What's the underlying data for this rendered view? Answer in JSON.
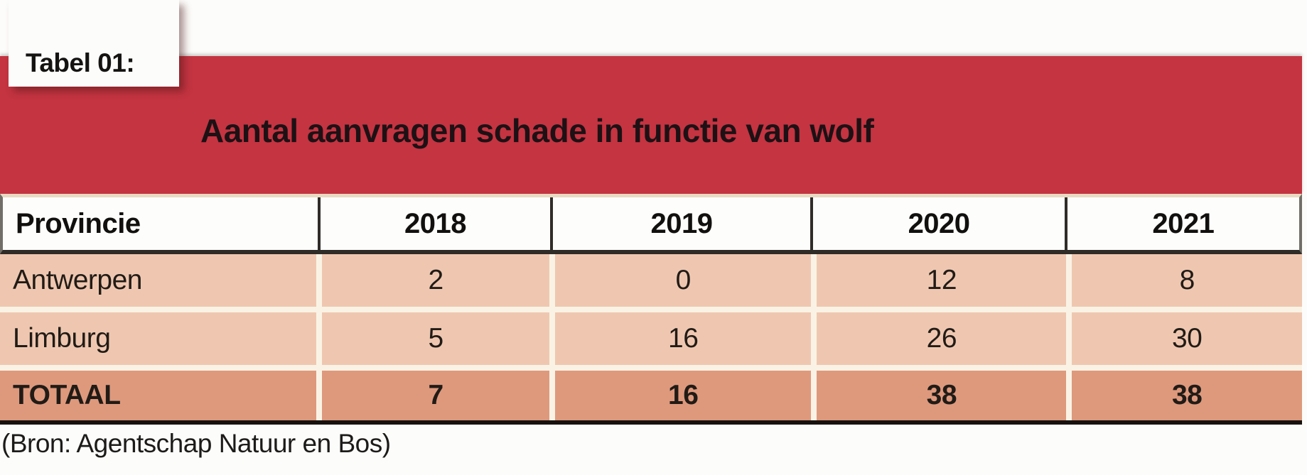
{
  "chart_data": {
    "type": "table",
    "label": "Tabel 01:",
    "title": "Aantal aanvragen schade in functie van wolf",
    "columns": [
      "Provincie",
      "2018",
      "2019",
      "2020",
      "2021"
    ],
    "rows": [
      [
        "Antwerpen",
        "2",
        "0",
        "12",
        "8"
      ],
      [
        "Limburg",
        "5",
        "16",
        "26",
        "30"
      ],
      [
        "TOTAAL",
        "7",
        "16",
        "38",
        "38"
      ]
    ],
    "source": "(Bron: Agentschap Natuur en Bos)"
  },
  "colors": {
    "banner_red": "#c43441",
    "row_light": "#efc7b0",
    "row_total": "#de997d",
    "gap_cream": "#faf3e5",
    "header_border_dark": "#2f2b27"
  }
}
